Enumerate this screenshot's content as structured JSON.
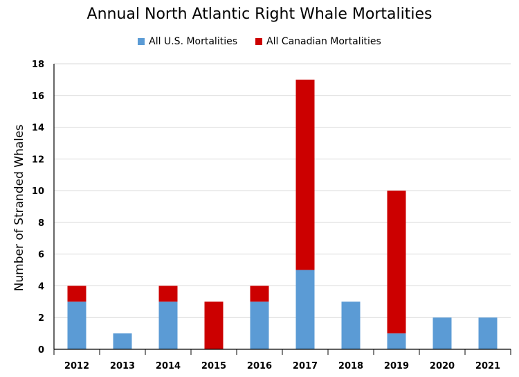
{
  "chart_data": {
    "type": "bar",
    "stacked": true,
    "title": "Annual North Atlantic Right Whale Mortalities",
    "xlabel": "",
    "ylabel": "Number of  Stranded Whales",
    "categories": [
      "2012",
      "2013",
      "2014",
      "2015",
      "2016",
      "2017",
      "2018",
      "2019",
      "2020",
      "2021"
    ],
    "series": [
      {
        "name": "All U.S. Mortalities",
        "color": "#5b9bd5",
        "values": [
          3,
          1,
          3,
          0,
          3,
          5,
          3,
          1,
          2,
          2
        ]
      },
      {
        "name": "All Canadian Mortalities",
        "color": "#cc0000",
        "values": [
          1,
          0,
          1,
          3,
          1,
          12,
          0,
          9,
          0,
          0
        ]
      }
    ],
    "ylim": [
      0,
      18
    ],
    "yticks": [
      0,
      2,
      4,
      6,
      8,
      10,
      12,
      14,
      16,
      18
    ],
    "grid": true,
    "legend": "top"
  }
}
